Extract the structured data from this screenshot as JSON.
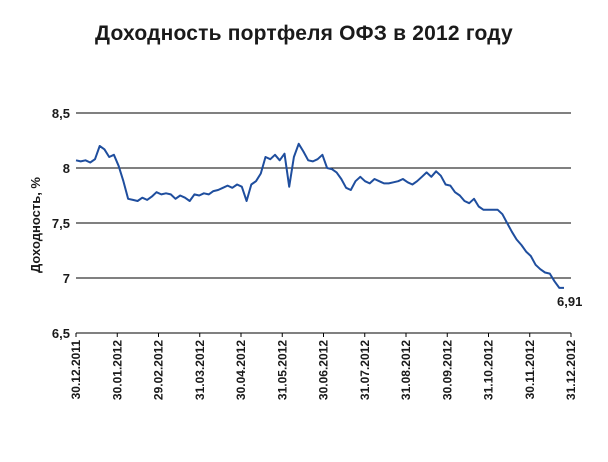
{
  "chart_data": {
    "type": "line",
    "title": "Доходность портфеля ОФЗ в 2012 году",
    "xlabel": "",
    "ylabel": "Доходность, %",
    "ylim": [
      6.5,
      8.5
    ],
    "y_ticks": [
      "8,5",
      "8",
      "7,5",
      "7",
      "6,5"
    ],
    "x_ticks": [
      "30.12.2011",
      "30.01.2012",
      "29.02.2012",
      "31.03.2012",
      "30.04.2012",
      "31.05.2012",
      "30.06.2012",
      "31.07.2012",
      "31.08.2012",
      "30.09.2012",
      "31.10.2012",
      "30.11.2012",
      "31.12.2012"
    ],
    "grid": "horizontal",
    "end_label": "6,91",
    "line_color": "#1f4e9e",
    "series": [
      {
        "values": [
          8.07,
          8.06,
          8.07,
          8.05,
          8.08,
          8.2,
          8.17,
          8.1,
          8.12,
          8.02,
          7.88,
          7.72,
          7.71,
          7.7,
          7.73,
          7.71,
          7.74,
          7.78,
          7.76,
          7.77,
          7.76,
          7.72,
          7.75,
          7.73,
          7.7,
          7.76,
          7.75,
          7.77,
          7.76,
          7.79,
          7.8,
          7.82,
          7.84,
          7.82,
          7.85,
          7.83,
          7.7,
          7.85,
          7.88,
          7.95,
          8.1,
          8.08,
          8.12,
          8.07,
          8.13,
          7.83,
          8.1,
          8.22,
          8.15,
          8.07,
          8.06,
          8.08,
          8.12,
          8.0,
          7.99,
          7.96,
          7.9,
          7.82,
          7.8,
          7.88,
          7.92,
          7.88,
          7.86,
          7.9,
          7.88,
          7.86,
          7.86,
          7.87,
          7.88,
          7.9,
          7.87,
          7.85,
          7.88,
          7.92,
          7.96,
          7.92,
          7.97,
          7.93,
          7.85,
          7.84,
          7.78,
          7.75,
          7.7,
          7.68,
          7.72,
          7.65,
          7.62,
          7.62,
          7.62,
          7.62,
          7.58,
          7.5,
          7.42,
          7.35,
          7.3,
          7.24,
          7.2,
          7.12,
          7.08,
          7.05,
          7.04,
          6.97,
          6.91,
          6.91
        ]
      }
    ]
  }
}
